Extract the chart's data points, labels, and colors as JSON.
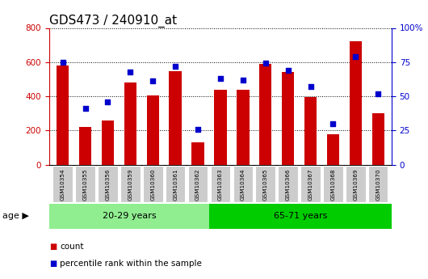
{
  "title": "GDS473 / 240910_at",
  "samples": [
    "GSM10354",
    "GSM10355",
    "GSM10356",
    "GSM10359",
    "GSM10360",
    "GSM10361",
    "GSM10362",
    "GSM10363",
    "GSM10364",
    "GSM10365",
    "GSM10366",
    "GSM10367",
    "GSM10368",
    "GSM10369",
    "GSM10370"
  ],
  "counts": [
    580,
    220,
    260,
    480,
    405,
    545,
    130,
    440,
    440,
    590,
    540,
    395,
    178,
    720,
    300
  ],
  "percentiles": [
    75,
    41,
    46,
    68,
    61,
    72,
    26,
    63,
    62,
    74,
    69,
    57,
    30,
    79,
    52
  ],
  "group1_label": "20-29 years",
  "group1_count": 7,
  "group2_label": "65-71 years",
  "group2_count": 8,
  "age_label": "age",
  "left_ylim": [
    0,
    800
  ],
  "right_ylim": [
    0,
    100
  ],
  "left_yticks": [
    0,
    200,
    400,
    600,
    800
  ],
  "right_yticks": [
    0,
    25,
    50,
    75,
    100
  ],
  "right_yticklabels": [
    "0",
    "25",
    "50",
    "75",
    "100%"
  ],
  "bar_color": "#cc0000",
  "dot_color": "#0000cc",
  "group1_bg": "#90ee90",
  "group2_bg": "#00cc00",
  "tick_bg": "#cccccc",
  "legend_count_label": "count",
  "legend_pct_label": "percentile rank within the sample",
  "title_fontsize": 11,
  "tick_fontsize": 7.5,
  "label_fontsize": 8
}
